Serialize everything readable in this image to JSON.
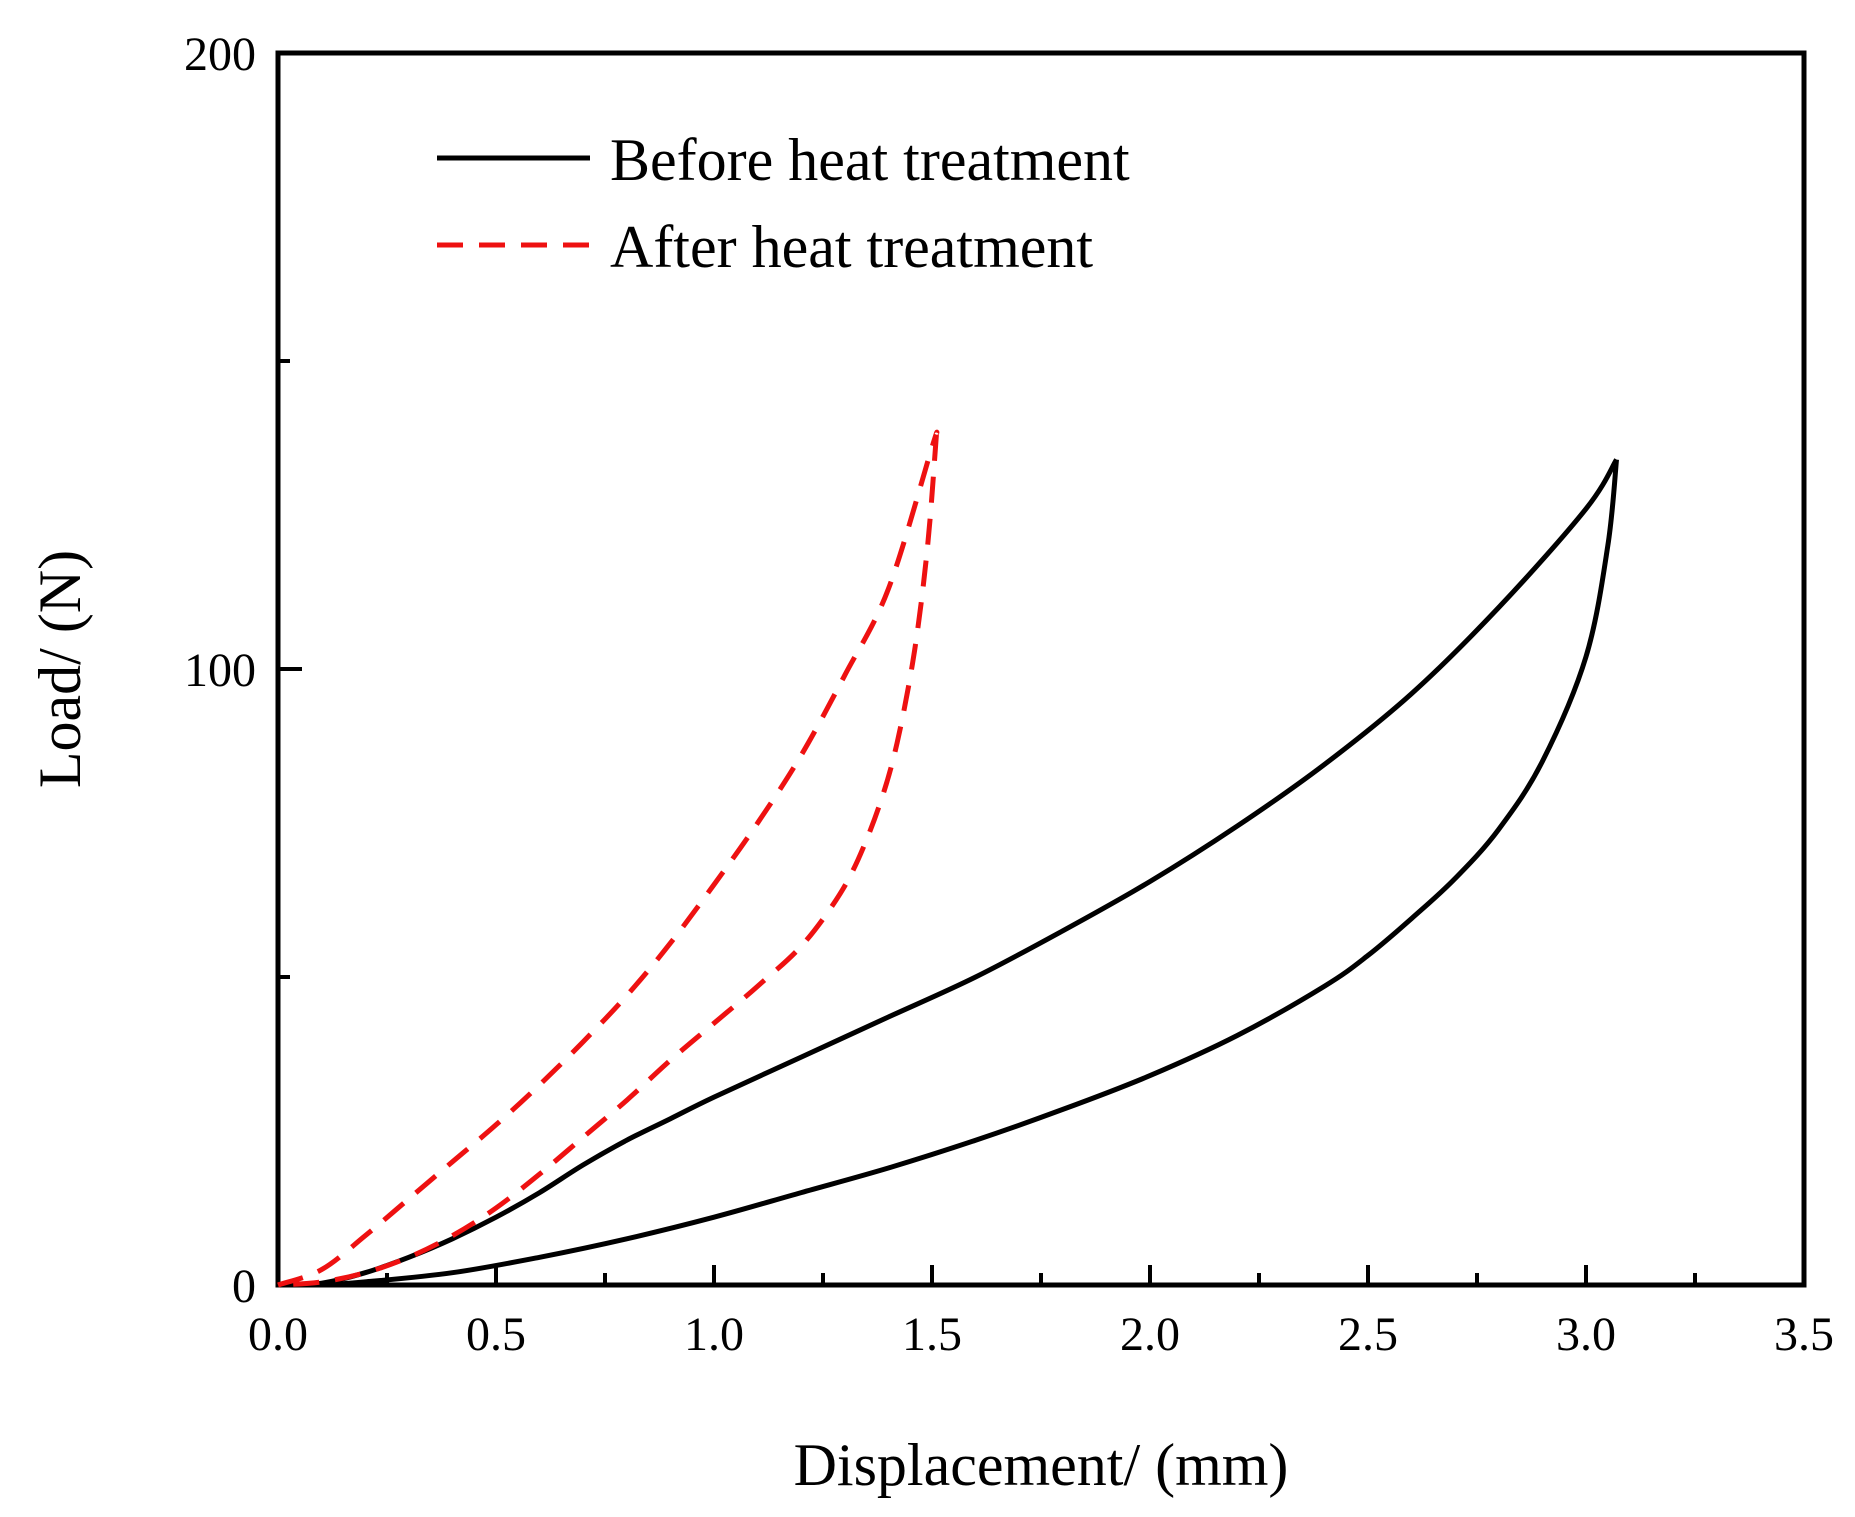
{
  "chart_data": {
    "type": "line",
    "title": "",
    "xlabel": "Displacement/ (mm)",
    "ylabel": "Load/ (N)",
    "xlim": [
      0,
      3.5
    ],
    "ylim": [
      0,
      200
    ],
    "x_ticks": [
      0.0,
      0.5,
      1.0,
      1.5,
      2.0,
      2.5,
      3.0,
      3.5
    ],
    "x_tick_labels": [
      "0.0",
      "0.5",
      "1.0",
      "1.5",
      "2.0",
      "2.5",
      "3.0",
      "3.5"
    ],
    "y_ticks": [
      0,
      100,
      200
    ],
    "y_tick_labels": [
      "0",
      "100",
      "200"
    ],
    "y_minor_ticks": [
      50,
      150
    ],
    "x_minor_ticks": [
      0.25,
      0.75,
      1.25,
      1.75,
      2.25,
      2.75,
      3.25
    ],
    "grid": false,
    "legend_position": "top-left",
    "series": [
      {
        "name": "Before heat treatment",
        "color": "#000000",
        "line_style": "solid",
        "loading": [
          [
            0.0,
            0.0
          ],
          [
            0.1,
            0.3
          ],
          [
            0.2,
            2.0
          ],
          [
            0.3,
            4.5
          ],
          [
            0.4,
            7.5
          ],
          [
            0.5,
            11.0
          ],
          [
            0.6,
            15.0
          ],
          [
            0.7,
            19.5
          ],
          [
            0.8,
            23.5
          ],
          [
            0.9,
            27.0
          ],
          [
            1.0,
            30.5
          ],
          [
            1.2,
            37.0
          ],
          [
            1.4,
            43.5
          ],
          [
            1.6,
            50.0
          ],
          [
            1.8,
            57.5
          ],
          [
            2.0,
            65.5
          ],
          [
            2.2,
            74.5
          ],
          [
            2.4,
            84.5
          ],
          [
            2.6,
            96.0
          ],
          [
            2.8,
            110.0
          ],
          [
            3.0,
            126.0
          ],
          [
            3.07,
            134.0
          ]
        ],
        "unloading": [
          [
            3.07,
            134.0
          ],
          [
            3.05,
            120.0
          ],
          [
            3.0,
            102.0
          ],
          [
            2.9,
            85.0
          ],
          [
            2.8,
            74.0
          ],
          [
            2.7,
            66.0
          ],
          [
            2.6,
            59.5
          ],
          [
            2.5,
            53.5
          ],
          [
            2.4,
            48.5
          ],
          [
            2.2,
            40.5
          ],
          [
            2.0,
            34.0
          ],
          [
            1.8,
            28.5
          ],
          [
            1.6,
            23.5
          ],
          [
            1.4,
            19.0
          ],
          [
            1.2,
            15.0
          ],
          [
            1.0,
            11.0
          ],
          [
            0.8,
            7.5
          ],
          [
            0.6,
            4.5
          ],
          [
            0.4,
            2.0
          ],
          [
            0.2,
            0.5
          ],
          [
            0.1,
            0.0
          ]
        ]
      },
      {
        "name": "After heat treatment",
        "color": "#ee1111",
        "line_style": "dashed",
        "loading": [
          [
            0.0,
            0.0
          ],
          [
            0.1,
            2.5
          ],
          [
            0.2,
            8.0
          ],
          [
            0.3,
            14.0
          ],
          [
            0.4,
            20.0
          ],
          [
            0.5,
            26.0
          ],
          [
            0.6,
            32.5
          ],
          [
            0.7,
            39.5
          ],
          [
            0.8,
            47.0
          ],
          [
            0.9,
            55.5
          ],
          [
            1.0,
            65.0
          ],
          [
            1.1,
            75.0
          ],
          [
            1.2,
            86.0
          ],
          [
            1.3,
            99.0
          ],
          [
            1.4,
            113.0
          ],
          [
            1.5,
            136.0
          ],
          [
            1.51,
            138.0
          ]
        ],
        "unloading": [
          [
            1.51,
            138.0
          ],
          [
            1.49,
            120.0
          ],
          [
            1.46,
            103.0
          ],
          [
            1.42,
            88.0
          ],
          [
            1.38,
            78.0
          ],
          [
            1.33,
            69.0
          ],
          [
            1.28,
            62.5
          ],
          [
            1.2,
            55.0
          ],
          [
            1.1,
            48.5
          ],
          [
            1.0,
            42.5
          ],
          [
            0.9,
            36.5
          ],
          [
            0.8,
            30.0
          ],
          [
            0.7,
            24.0
          ],
          [
            0.6,
            18.0
          ],
          [
            0.5,
            12.5
          ],
          [
            0.4,
            8.0
          ],
          [
            0.3,
            4.5
          ],
          [
            0.2,
            2.0
          ],
          [
            0.1,
            0.5
          ],
          [
            0.0,
            0.0
          ]
        ]
      }
    ]
  }
}
